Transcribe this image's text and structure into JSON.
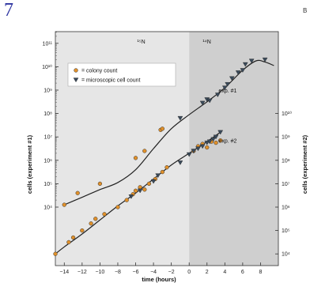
{
  "figure_number": "7",
  "cropped_corner_text": "B",
  "chart_data": {
    "type": "scatter",
    "xlabel": "time (hours)",
    "ylabel": "cells (experiment #1)",
    "ylabel_right": "cells (experiment #2)",
    "xlim": [
      -15,
      10
    ],
    "ylim_exp": [
      1.5,
      11.5
    ],
    "log_scale_y": true,
    "x_ticks": [
      -14,
      -12,
      -10,
      -8,
      -6,
      -4,
      -2,
      0,
      2,
      4,
      6,
      8
    ],
    "left_ticks": [
      {
        "exp": 4,
        "label": "10⁴"
      },
      {
        "exp": 5,
        "label": "10⁵"
      },
      {
        "exp": 6,
        "label": "10⁶"
      },
      {
        "exp": 7,
        "label": "10⁷"
      },
      {
        "exp": 8,
        "label": "10⁸"
      },
      {
        "exp": 9,
        "label": "10⁹"
      },
      {
        "exp": 10,
        "label": "10¹⁰"
      },
      {
        "exp": 11,
        "label": "10¹¹"
      }
    ],
    "right_ticks": [
      {
        "exp": 2,
        "label": "10⁴"
      },
      {
        "exp": 3,
        "label": "10⁵"
      },
      {
        "exp": 4,
        "label": "10⁶"
      },
      {
        "exp": 5,
        "label": "10⁷"
      },
      {
        "exp": 6,
        "label": "10⁸"
      },
      {
        "exp": 7,
        "label": "10⁹"
      },
      {
        "exp": 8,
        "label": "10¹⁰"
      }
    ],
    "regions": [
      {
        "label": "¹⁵N",
        "from": -15,
        "to": 0,
        "color": "#e6e6e6"
      },
      {
        "label": "¹⁴N",
        "from": 0,
        "to": 10,
        "color": "#cfcfcf"
      }
    ],
    "legend": {
      "position": "top-left",
      "entries": [
        {
          "marker": "circle",
          "color": "#e0902a",
          "label": "= colony count"
        },
        {
          "marker": "triangle-down",
          "color": "#3a4a5a",
          "label": "= microscopic cell count"
        }
      ]
    },
    "annotations": [
      {
        "text": "exp. #1",
        "x": 3.3,
        "y_exp": 8.9
      },
      {
        "text": "exp. #2",
        "x": 3.3,
        "y_exp": 6.75
      }
    ],
    "series": [
      {
        "name": "exp. #1",
        "curve": [
          [
            -14,
            4.1
          ],
          [
            -12,
            4.42
          ],
          [
            -10,
            4.75
          ],
          [
            -8,
            5.05
          ],
          [
            -6,
            5.6
          ],
          [
            -4,
            6.5
          ],
          [
            -2,
            7.35
          ],
          [
            0,
            7.95
          ],
          [
            2,
            8.5
          ],
          [
            4,
            9.1
          ],
          [
            6,
            9.85
          ],
          [
            7.5,
            10.25
          ],
          [
            8.5,
            10.2
          ],
          [
            9.5,
            10.05
          ]
        ],
        "colony_count": [
          [
            -14,
            4.1
          ],
          [
            -12.5,
            4.6
          ],
          [
            -10,
            5.0
          ],
          [
            -6,
            6.1
          ],
          [
            -5,
            6.4
          ],
          [
            -3.2,
            7.3
          ],
          [
            -3.0,
            7.35
          ]
        ],
        "cell_count": [
          [
            -1,
            7.8
          ],
          [
            1.5,
            8.45
          ],
          [
            2,
            8.6
          ],
          [
            2.3,
            8.55
          ],
          [
            3.2,
            8.8
          ],
          [
            4,
            9.1
          ],
          [
            4.3,
            9.25
          ],
          [
            4.8,
            9.5
          ],
          [
            5.5,
            9.75
          ],
          [
            6,
            9.85
          ],
          [
            6.3,
            10.1
          ],
          [
            7,
            10.25
          ],
          [
            8.5,
            10.3
          ]
        ]
      },
      {
        "name": "exp. #2",
        "curve": [
          [
            -15,
            2.0
          ],
          [
            -14,
            2.3
          ],
          [
            -12,
            2.85
          ],
          [
            -10,
            3.45
          ],
          [
            -8,
            4.05
          ],
          [
            -6,
            4.6
          ],
          [
            -4,
            5.2
          ],
          [
            -2,
            5.8
          ],
          [
            0,
            6.3
          ],
          [
            2,
            6.8
          ],
          [
            3.5,
            7.2
          ]
        ],
        "colony_count": [
          [
            -15,
            2.0
          ],
          [
            -13.5,
            2.5
          ],
          [
            -13,
            2.7
          ],
          [
            -12,
            3.0
          ],
          [
            -11,
            3.3
          ],
          [
            -10.5,
            3.5
          ],
          [
            -9.5,
            3.7
          ],
          [
            -8,
            4.0
          ],
          [
            -7,
            4.3
          ],
          [
            -6.3,
            4.55
          ],
          [
            -6,
            4.7
          ],
          [
            -5.5,
            4.85
          ],
          [
            -5,
            4.75
          ],
          [
            -4.5,
            5.0
          ],
          [
            -3.8,
            5.2
          ],
          [
            -3,
            5.5
          ],
          [
            -2.5,
            5.7
          ],
          [
            0.5,
            6.4
          ],
          [
            1,
            6.6
          ],
          [
            1.5,
            6.7
          ],
          [
            2,
            6.55
          ],
          [
            2.5,
            6.8
          ],
          [
            3,
            6.75
          ],
          [
            3.5,
            6.85
          ]
        ],
        "cell_count": [
          [
            -6.5,
            4.45
          ],
          [
            -5.5,
            4.7
          ],
          [
            -4,
            5.1
          ],
          [
            -3.5,
            5.35
          ],
          [
            -1,
            5.9
          ],
          [
            0,
            6.25
          ],
          [
            0.5,
            6.4
          ],
          [
            1,
            6.5
          ],
          [
            1.5,
            6.6
          ],
          [
            2,
            6.75
          ],
          [
            2.3,
            6.8
          ],
          [
            2.7,
            6.9
          ],
          [
            3,
            7.0
          ],
          [
            3.5,
            7.2
          ]
        ]
      }
    ]
  }
}
